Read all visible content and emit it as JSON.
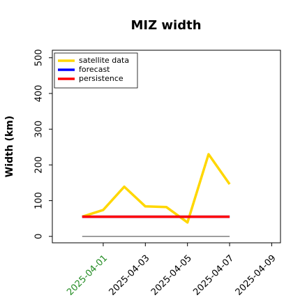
{
  "chart_data": {
    "type": "line",
    "title": "MIZ width",
    "ylabel": "Width (km)",
    "x": [
      "2025-03-31",
      "2025-04-01",
      "2025-04-02",
      "2025-04-03",
      "2025-04-04",
      "2025-04-05",
      "2025-04-06",
      "2025-04-07"
    ],
    "series": [
      {
        "color": "#808080",
        "values": [
          0,
          0,
          0,
          0,
          0,
          0,
          0,
          0
        ]
      },
      {
        "name": "satellite data",
        "color": "#ffd700",
        "values": [
          55,
          74,
          139,
          84,
          82,
          39,
          230,
          146
        ]
      },
      {
        "name": "forecast",
        "color": "#0000ff",
        "values": [
          55,
          55,
          55,
          55,
          55,
          55,
          55,
          55
        ]
      },
      {
        "name": "persistence",
        "color": "#ff0000",
        "values": [
          55,
          55,
          55,
          55,
          55,
          55,
          55,
          55
        ]
      }
    ],
    "xlim": [
      "2025-03-29T14:00Z",
      "2025-04-09T10:00Z"
    ],
    "xticks": [
      "2025-04-01",
      "2025-04-03",
      "2025-04-05",
      "2025-04-07",
      "2025-04-09"
    ],
    "xtick_colors": [
      "#228b22",
      "#000000",
      "#000000",
      "#000000",
      "#000000"
    ],
    "ylim": [
      -18,
      521
    ],
    "yticks": [
      0,
      100,
      200,
      300,
      400,
      500
    ],
    "legend": "upper left"
  }
}
